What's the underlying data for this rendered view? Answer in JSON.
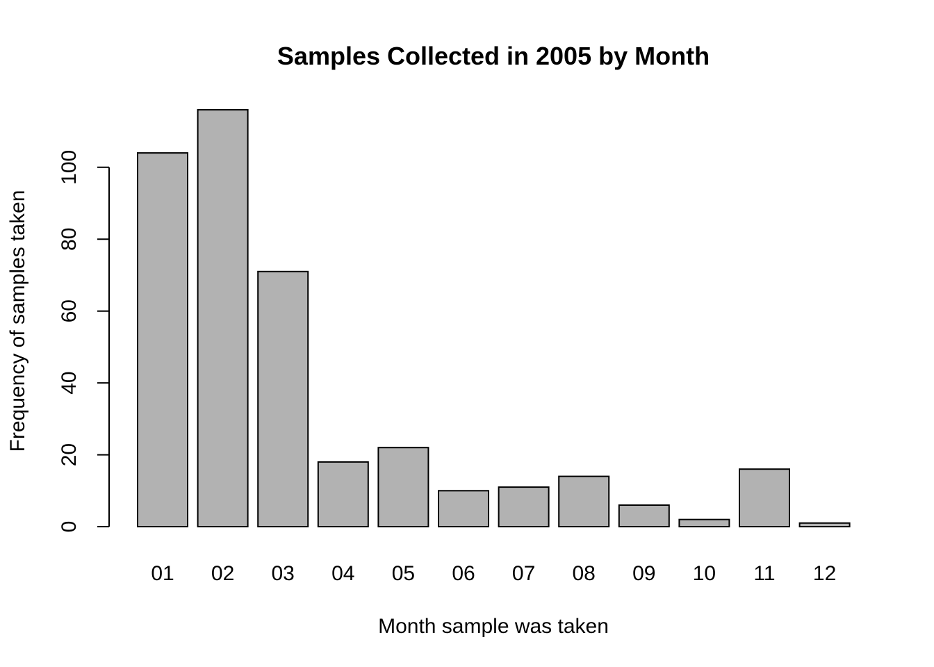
{
  "chart_data": {
    "type": "bar",
    "title": "Samples Collected in 2005 by Month",
    "xlabel": "Month sample was taken",
    "ylabel": "Frequency of samples taken",
    "categories": [
      "01",
      "02",
      "03",
      "04",
      "05",
      "06",
      "07",
      "08",
      "09",
      "10",
      "11",
      "12"
    ],
    "values": [
      104,
      116,
      71,
      18,
      22,
      10,
      11,
      14,
      6,
      2,
      16,
      1
    ],
    "y_ticks": [
      0,
      20,
      40,
      60,
      80,
      100
    ],
    "ylim": [
      0,
      116
    ],
    "bar_color": "#b2b2b2",
    "grid": false,
    "legend": "none"
  }
}
